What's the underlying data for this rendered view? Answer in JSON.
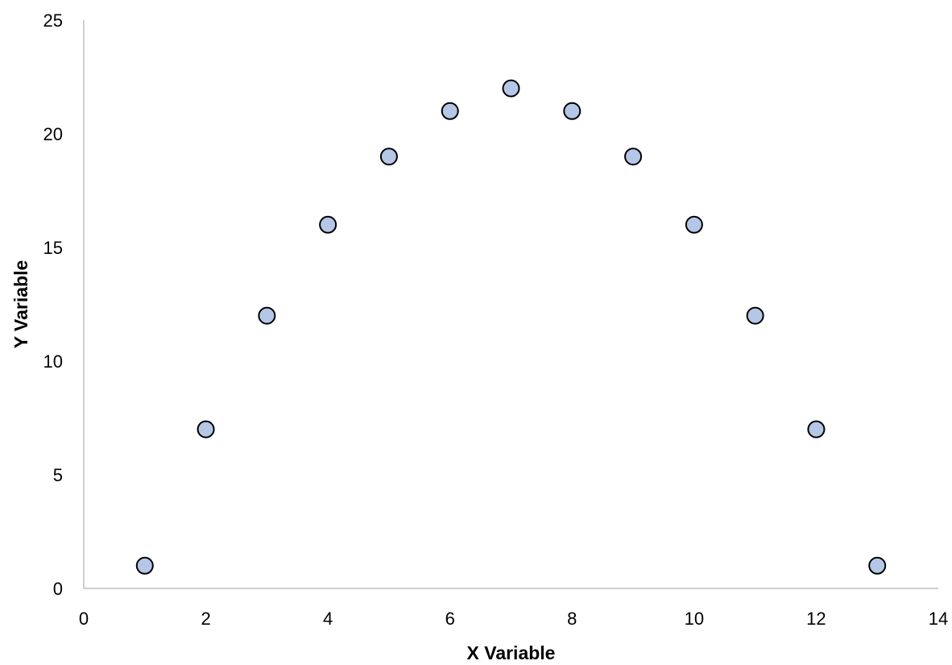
{
  "chart_data": {
    "type": "scatter",
    "title": "",
    "xlabel": "X Variable",
    "ylabel": "Y Variable",
    "xlim": [
      0,
      14
    ],
    "ylim": [
      0,
      25
    ],
    "xticks": [
      0,
      2,
      4,
      6,
      8,
      10,
      12,
      14
    ],
    "yticks": [
      0,
      5,
      10,
      15,
      20,
      25
    ],
    "grid": false,
    "legend": "none",
    "series": [
      {
        "x": [
          1,
          2,
          3,
          4,
          5,
          6,
          7,
          8,
          9,
          10,
          11,
          12,
          13
        ],
        "y": [
          1,
          7,
          12,
          16,
          19,
          21,
          22,
          21,
          19,
          16,
          12,
          7,
          1
        ]
      }
    ],
    "colors": {
      "marker_fill": "#b4c7e7",
      "marker_stroke": "#000000",
      "axis": "#bfbfbf"
    }
  }
}
